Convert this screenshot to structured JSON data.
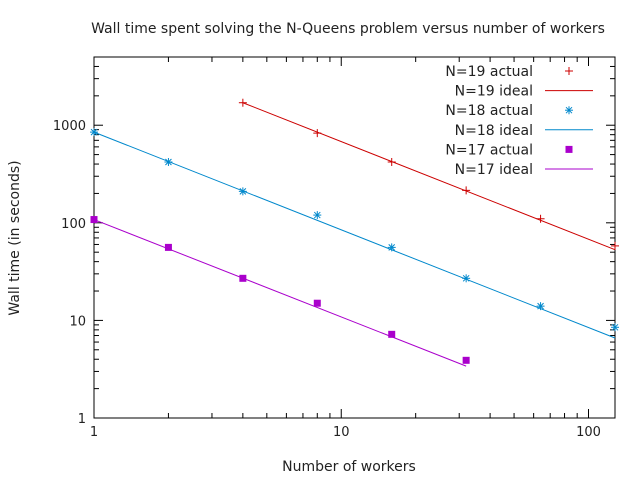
{
  "chart_data": {
    "type": "scatter",
    "title": "Wall time spent solving the N-Queens problem versus number of workers",
    "xlabel": "Number of workers",
    "ylabel": "Wall time (in seconds)",
    "x_scale": "log",
    "y_scale": "log",
    "xlim": [
      1,
      128
    ],
    "ylim": [
      1,
      5000
    ],
    "x_ticks": [
      {
        "value": 1,
        "label": "1"
      },
      {
        "value": 10,
        "label": "10"
      },
      {
        "value": 100,
        "label": "100"
      }
    ],
    "y_ticks": [
      {
        "value": 1,
        "label": "1"
      },
      {
        "value": 10,
        "label": "10"
      },
      {
        "value": 100,
        "label": "100"
      },
      {
        "value": 1000,
        "label": "1000"
      }
    ],
    "grid": false,
    "legend_position": "top-right",
    "series": [
      {
        "name": "N=19 actual",
        "kind": "points",
        "marker": "plus",
        "color": "#cc0000",
        "x": [
          4,
          8,
          16,
          32,
          64,
          128
        ],
        "y": [
          1700,
          830,
          420,
          215,
          110,
          58
        ]
      },
      {
        "name": "N=19 ideal",
        "kind": "line",
        "color": "#cc0000",
        "x": [
          4,
          128
        ],
        "y": [
          1700,
          53
        ]
      },
      {
        "name": "N=18 actual",
        "kind": "points",
        "marker": "star",
        "color": "#0088cc",
        "x": [
          1,
          2,
          4,
          8,
          16,
          32,
          64,
          128
        ],
        "y": [
          850,
          420,
          210,
          120,
          56,
          27,
          14,
          8.5
        ]
      },
      {
        "name": "N=18 ideal",
        "kind": "line",
        "color": "#0088cc",
        "x": [
          1,
          128
        ],
        "y": [
          850,
          6.6
        ]
      },
      {
        "name": "N=17 actual",
        "kind": "points",
        "marker": "square",
        "color": "#aa00cc",
        "x": [
          1,
          2,
          4,
          8,
          16,
          32
        ],
        "y": [
          108,
          56,
          27,
          15,
          7.2,
          3.9
        ]
      },
      {
        "name": "N=17 ideal",
        "kind": "line",
        "color": "#aa00cc",
        "x": [
          1,
          32
        ],
        "y": [
          108,
          3.4
        ]
      }
    ]
  }
}
